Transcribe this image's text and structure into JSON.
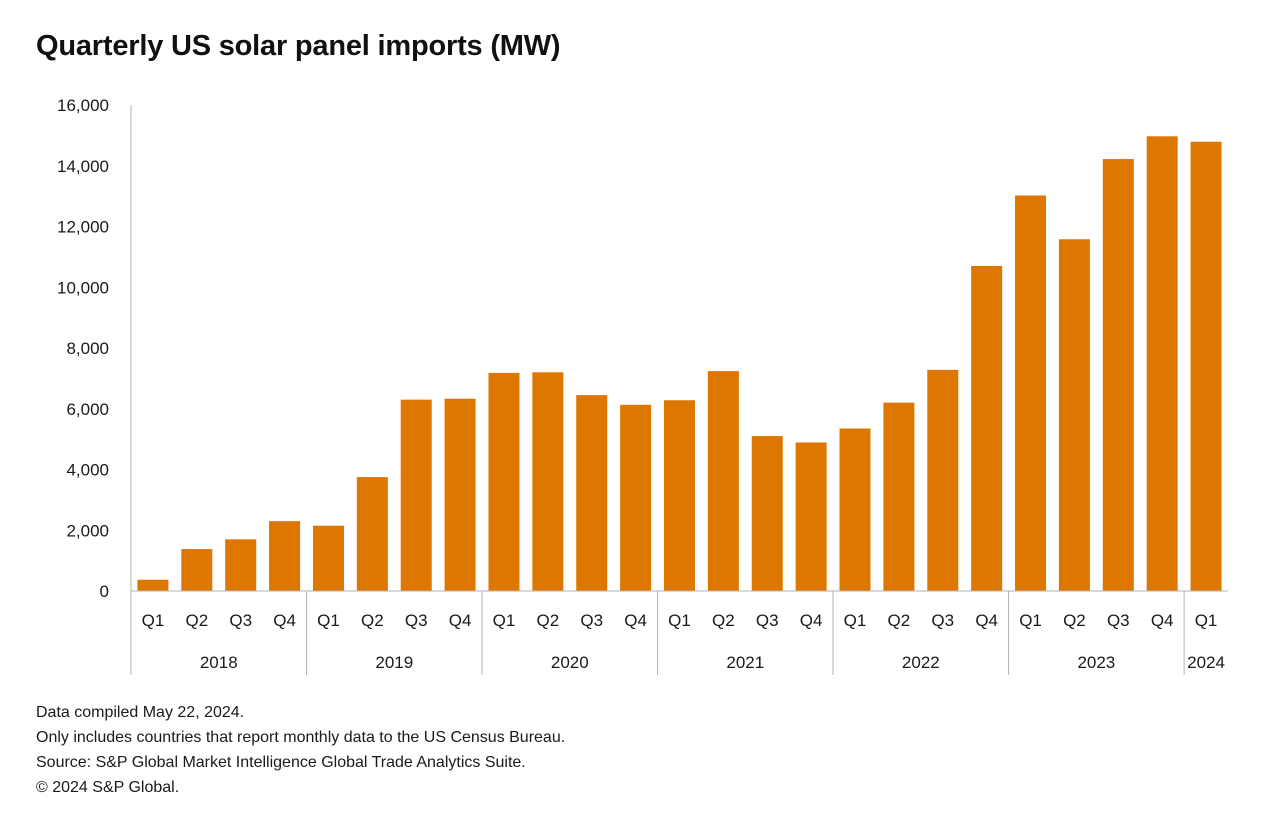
{
  "colors": {
    "bar": "#dd7700",
    "axis": "#b3b3b3",
    "text": "#1a1a1a"
  },
  "chart_data": {
    "type": "bar",
    "title": "Quarterly US solar panel imports (MW)",
    "xlabel": "",
    "ylabel": "",
    "ylim": [
      0,
      16000
    ],
    "y_ticks": [
      0,
      2000,
      4000,
      6000,
      8000,
      10000,
      12000,
      14000,
      16000
    ],
    "y_tick_labels": [
      "0",
      "2,000",
      "4,000",
      "6,000",
      "8,000",
      "10,000",
      "12,000",
      "14,000",
      "16,000"
    ],
    "grid": false,
    "legend": "none",
    "categories": [
      "Q1",
      "Q2",
      "Q3",
      "Q4",
      "Q1",
      "Q2",
      "Q3",
      "Q4",
      "Q1",
      "Q2",
      "Q3",
      "Q4",
      "Q1",
      "Q2",
      "Q3",
      "Q4",
      "Q1",
      "Q2",
      "Q3",
      "Q4",
      "Q1",
      "Q2",
      "Q3",
      "Q4",
      "Q1"
    ],
    "groups": [
      {
        "label": "2018",
        "count": 4
      },
      {
        "label": "2019",
        "count": 4
      },
      {
        "label": "2020",
        "count": 4
      },
      {
        "label": "2021",
        "count": 4
      },
      {
        "label": "2022",
        "count": 4
      },
      {
        "label": "2023",
        "count": 4
      },
      {
        "label": "2024",
        "count": 1
      }
    ],
    "values": [
      370,
      1380,
      1700,
      2300,
      2150,
      3750,
      6300,
      6330,
      7180,
      7200,
      6450,
      6130,
      6280,
      7240,
      5100,
      4890,
      5350,
      6200,
      7280,
      10700,
      13020,
      11580,
      14220,
      14970,
      14790
    ]
  },
  "notes": {
    "line1": "Data compiled May 22, 2024.",
    "line2": "Only includes countries that report monthly data to the US Census Bureau.",
    "line3": "Source: S&P Global Market Intelligence Global Trade Analytics Suite.",
    "line4": "© 2024 S&P Global."
  }
}
